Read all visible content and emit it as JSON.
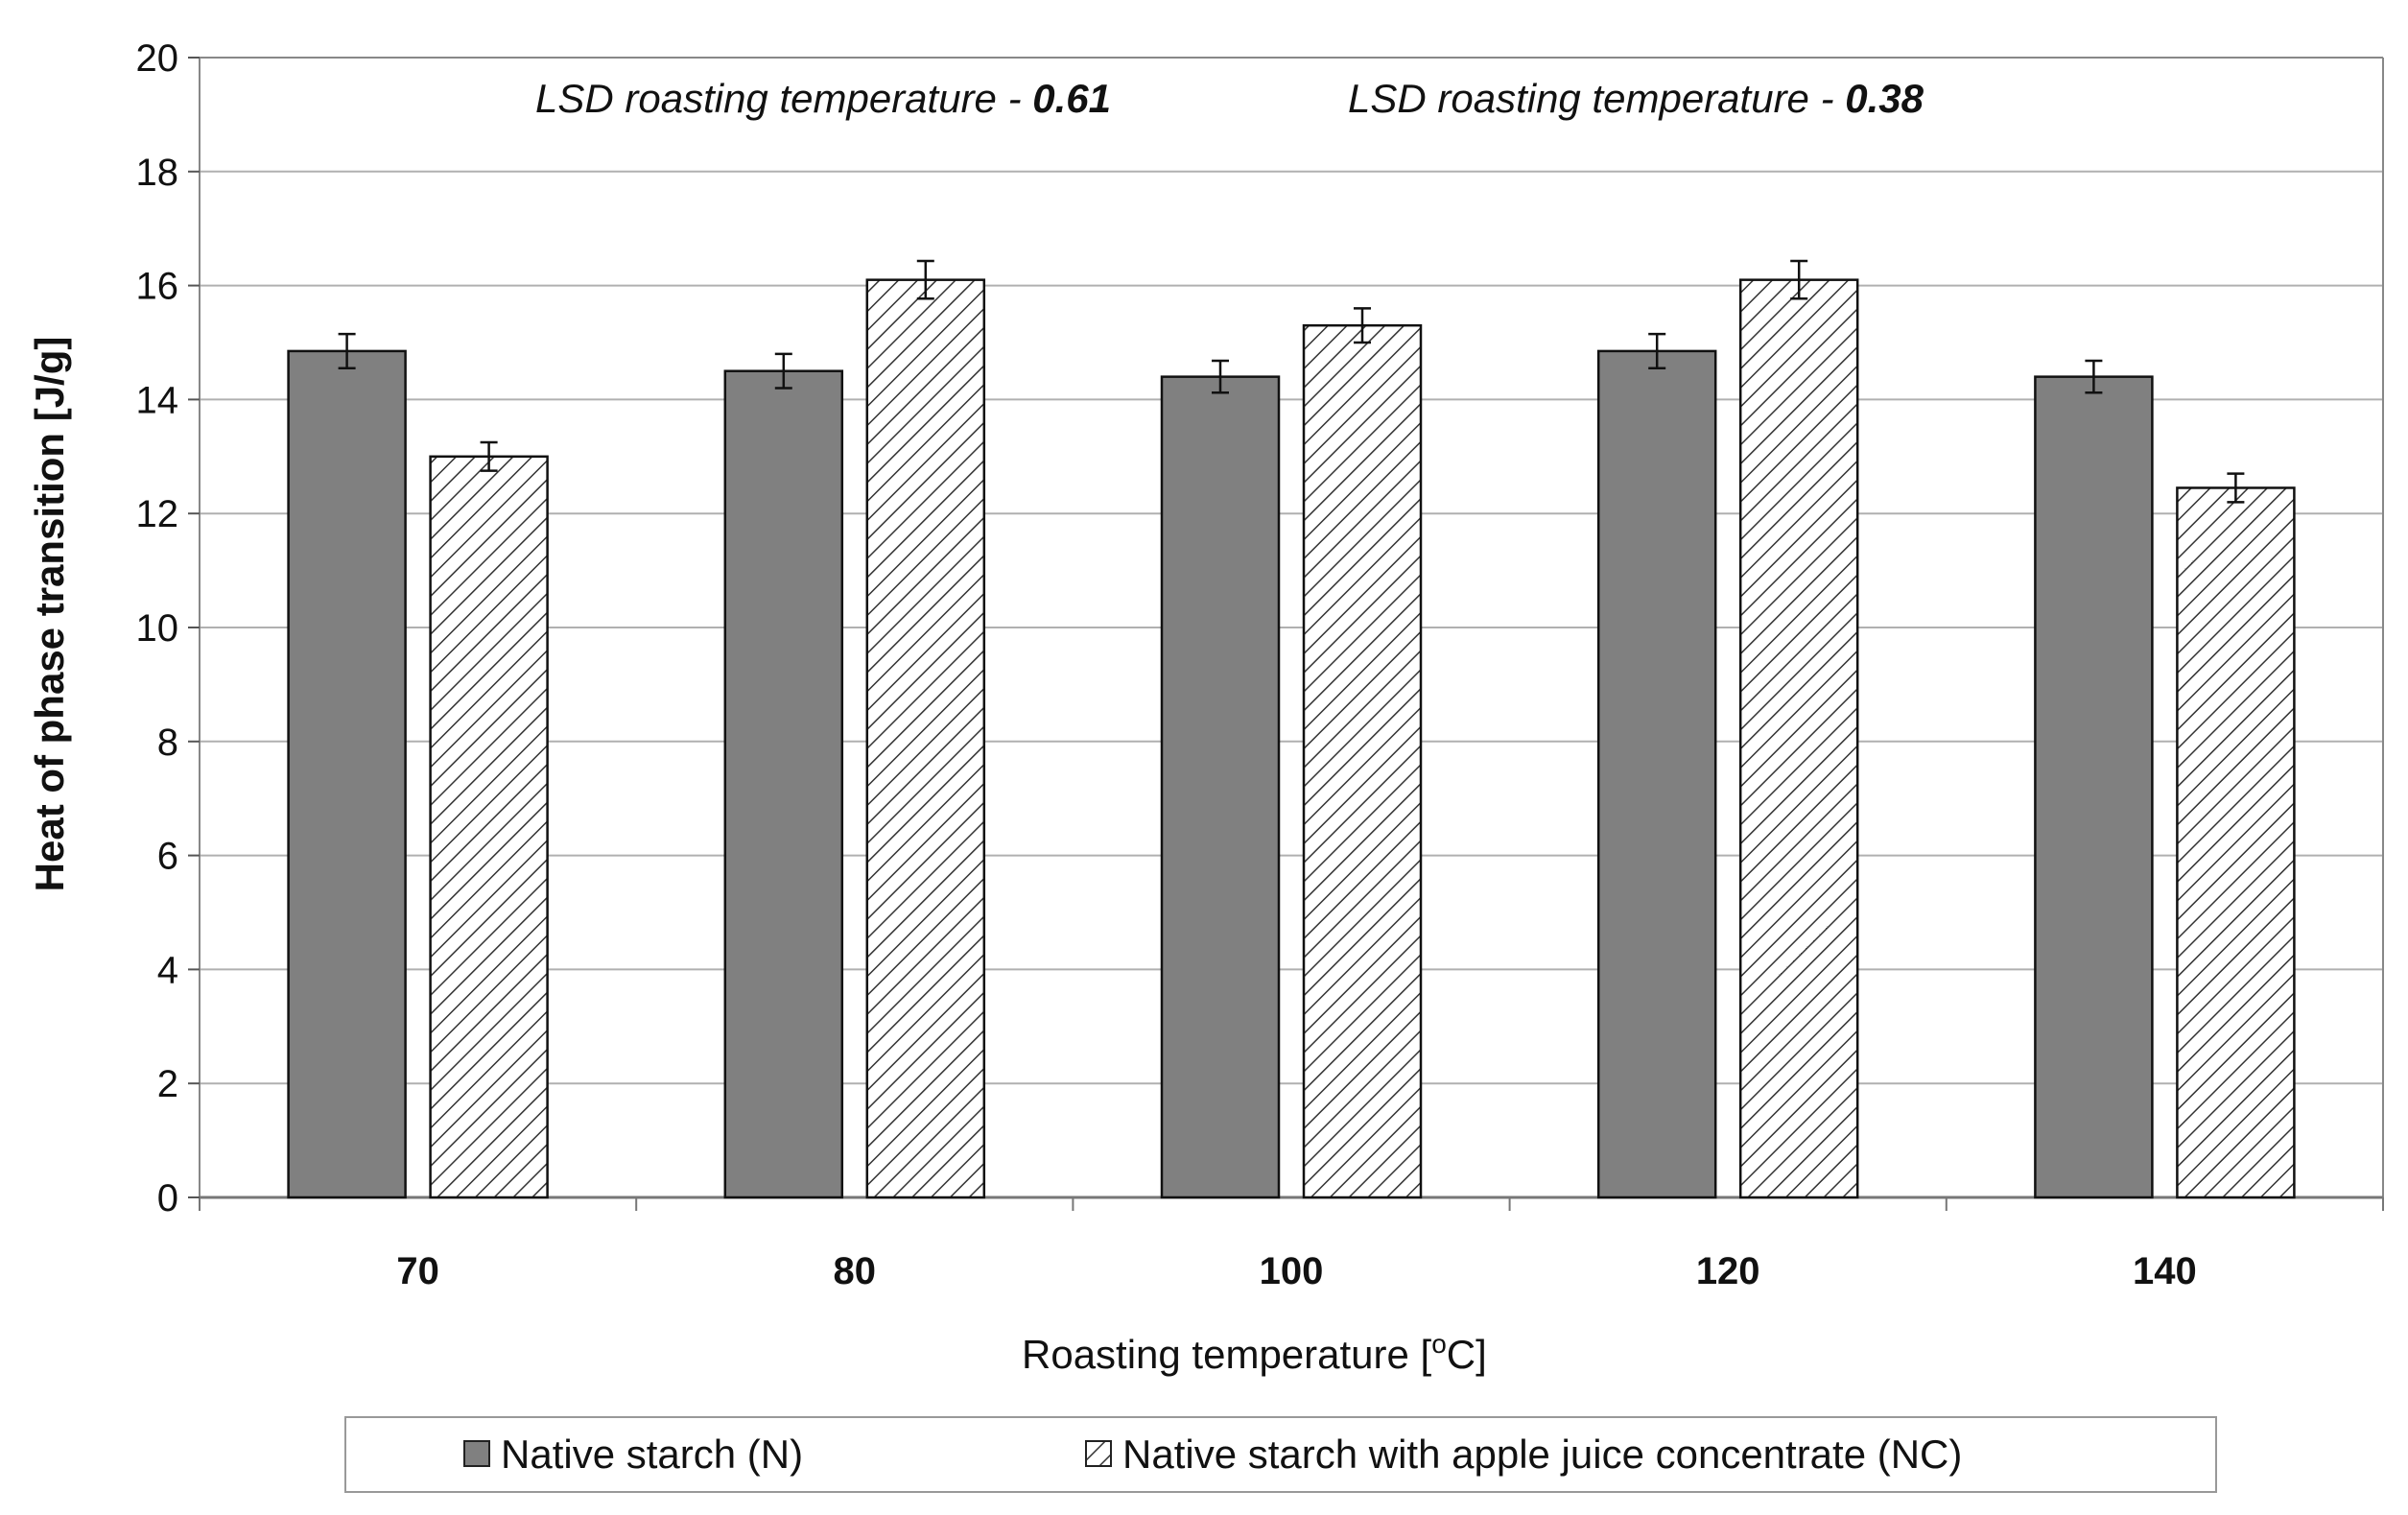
{
  "chart_data": {
    "type": "bar",
    "title": "",
    "xlabel": "Roasting temperature [°C]",
    "xlabel_main": "Roasting temperature [",
    "xlabel_sup": "o",
    "xlabel_end": "C]",
    "ylabel": "Heat of phase transition [J/g]",
    "ylim": [
      0,
      20
    ],
    "yticks": [
      0,
      2,
      4,
      6,
      8,
      10,
      12,
      14,
      16,
      18,
      20
    ],
    "grid": true,
    "categories": [
      "70",
      "80",
      "100",
      "120",
      "140"
    ],
    "series": [
      {
        "name": "Native starch (N)",
        "fill": "solid",
        "color": "#808080",
        "values": [
          14.85,
          14.5,
          14.4,
          14.85,
          14.4
        ],
        "errors": [
          0.3,
          0.3,
          0.28,
          0.3,
          0.28
        ]
      },
      {
        "name": "Native starch with apple juice concentrate (NC)",
        "fill": "hatched",
        "color": "#ffffff",
        "values": [
          13.0,
          16.1,
          15.3,
          16.1,
          12.45
        ],
        "errors": [
          0.25,
          0.33,
          0.3,
          0.33,
          0.25
        ]
      }
    ],
    "annotations": [
      {
        "text": "LSD roasting temperature -  ",
        "value": "0.61"
      },
      {
        "text": "LSD roasting temperature -  ",
        "value": "0.38"
      }
    ],
    "legend_position": "bottom"
  }
}
